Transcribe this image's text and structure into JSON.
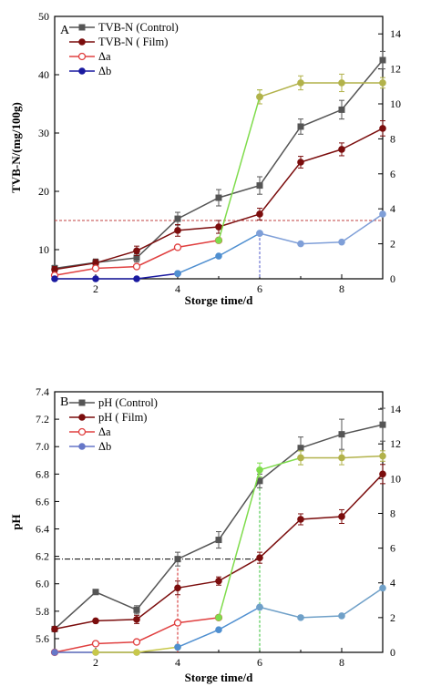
{
  "chart_data": [
    {
      "panel": "A",
      "type": "line",
      "xlabel": "Storge time/d",
      "ylabel": "TVB-N/(mg/100g)",
      "xlim": [
        1,
        9
      ],
      "ylim": [
        5,
        50
      ],
      "y2lim": [
        0,
        15
      ],
      "xticks": [
        2,
        4,
        6,
        8
      ],
      "yticks": [
        10,
        20,
        30,
        40,
        50
      ],
      "y2ticks": [
        0,
        2,
        4,
        6,
        8,
        10,
        12,
        14
      ],
      "series": [
        {
          "name": "TVB-N (Control)",
          "axis": "left",
          "color": "#555555",
          "marker": "square",
          "x": [
            1,
            2,
            3,
            4,
            5,
            6,
            7,
            8,
            9
          ],
          "y": [
            6.8,
            7.8,
            8.6,
            15.3,
            18.9,
            21.0,
            31.1,
            34.0,
            42.5
          ],
          "err": [
            0.5,
            0.6,
            0.7,
            1.1,
            1.4,
            1.5,
            1.3,
            1.6,
            1.5
          ]
        },
        {
          "name": "TVB-N ( Film)",
          "axis": "left",
          "color": "#7b0d0d",
          "marker": "circle",
          "x": [
            1,
            2,
            3,
            4,
            5,
            6,
            7,
            8,
            9
          ],
          "y": [
            6.6,
            7.7,
            9.8,
            13.3,
            13.9,
            16.1,
            25.0,
            27.2,
            30.8
          ],
          "err": [
            0.5,
            0.6,
            0.8,
            1.0,
            1.1,
            1.0,
            1.0,
            1.1,
            1.3
          ]
        },
        {
          "name": "Δa",
          "axis": "right",
          "color": "#e04040",
          "marker": "open-circle",
          "x": [
            1,
            2,
            3,
            4,
            5
          ],
          "y": [
            0.2,
            0.6,
            0.7,
            1.8,
            2.2
          ],
          "err": [
            0,
            0,
            0,
            0,
            0
          ]
        },
        {
          "name": "Δb",
          "axis": "right",
          "color": "#1a1aa0",
          "marker": "circle",
          "x": [
            1,
            2,
            3,
            4
          ],
          "y": [
            0.0,
            0.0,
            0.0,
            0.3
          ],
          "err": [
            0,
            0,
            0,
            0
          ]
        },
        {
          "axis": "right",
          "color": "#7fdc4c",
          "marker": "circle",
          "x": [
            5,
            6
          ],
          "y": [
            2.2,
            10.4
          ],
          "err": [
            0,
            0.4
          ]
        },
        {
          "axis": "right",
          "color": "#b2b24a",
          "marker": "circle",
          "x": [
            6,
            7,
            8,
            9
          ],
          "y": [
            10.4,
            11.2,
            11.2,
            11.2
          ],
          "err": [
            0.4,
            0.4,
            0.5,
            0.3
          ]
        },
        {
          "axis": "right",
          "color": "#4f8fd0",
          "marker": "circle",
          "x": [
            4,
            5,
            6
          ],
          "y": [
            0.3,
            1.3,
            2.6
          ],
          "err": [
            0,
            0,
            0
          ]
        },
        {
          "axis": "right",
          "color": "#7f9fd8",
          "marker": "circle",
          "x": [
            6,
            7,
            8,
            9
          ],
          "y": [
            2.6,
            2.0,
            2.1,
            3.7
          ],
          "err": [
            0,
            0,
            0,
            0
          ]
        }
      ],
      "guides": {
        "hline_left": 15,
        "vlines": [
          6
        ]
      },
      "legend_position": "top-left",
      "colors": {
        "guide": "#c04040"
      }
    },
    {
      "panel": "B",
      "type": "line",
      "xlabel": "Storge time/d",
      "ylabel": "pH",
      "xlim": [
        1,
        9
      ],
      "ylim": [
        5.5,
        7.4
      ],
      "y2lim": [
        0,
        15
      ],
      "xticks": [
        2,
        4,
        6,
        8
      ],
      "yticks": [
        5.6,
        5.8,
        6.0,
        6.2,
        6.4,
        6.6,
        6.8,
        7.0,
        7.2,
        7.4
      ],
      "y2ticks": [
        0,
        2,
        4,
        6,
        8,
        10,
        12,
        14
      ],
      "series": [
        {
          "name": "pH (Control)",
          "axis": "left",
          "color": "#555555",
          "marker": "square",
          "x": [
            1,
            2,
            3,
            4,
            5,
            6,
            7,
            8,
            9
          ],
          "y": [
            5.67,
            5.94,
            5.81,
            6.18,
            6.32,
            6.75,
            6.99,
            7.09,
            7.16
          ],
          "err": [
            0.01,
            0.01,
            0.03,
            0.05,
            0.06,
            0.05,
            0.08,
            0.11,
            0.12
          ]
        },
        {
          "name": "pH ( Film)",
          "axis": "left",
          "color": "#7b0d0d",
          "marker": "circle",
          "x": [
            1,
            2,
            3,
            4,
            5,
            6,
            7,
            8,
            9
          ],
          "y": [
            5.67,
            5.73,
            5.74,
            5.97,
            6.02,
            6.19,
            6.47,
            6.49,
            6.8
          ],
          "err": [
            0.01,
            0.01,
            0.03,
            0.05,
            0.03,
            0.04,
            0.04,
            0.05,
            0.07
          ]
        },
        {
          "name": "Δa",
          "axis": "right",
          "color": "#e04040",
          "marker": "open-circle",
          "x": [
            1,
            2,
            3,
            4,
            5
          ],
          "y": [
            0.0,
            0.5,
            0.6,
            1.7,
            2.0
          ],
          "err": [
            0,
            0,
            0,
            0,
            0
          ]
        },
        {
          "name": "Δb",
          "axis": "right",
          "color": "#6677c8",
          "marker": "circle",
          "x": [
            1,
            2,
            3
          ],
          "y": [
            0.0,
            0.0,
            0.0
          ],
          "err": [
            0,
            0,
            0
          ]
        },
        {
          "axis": "right",
          "color": "#c8c84a",
          "marker": "circle",
          "x": [
            2,
            3,
            4
          ],
          "y": [
            0.0,
            0.0,
            0.3
          ],
          "err": [
            0,
            0,
            0
          ]
        },
        {
          "axis": "right",
          "color": "#4f8fd0",
          "marker": "circle",
          "x": [
            4,
            5,
            6
          ],
          "y": [
            0.3,
            1.3,
            2.6
          ],
          "err": [
            0,
            0,
            0
          ]
        },
        {
          "axis": "right",
          "color": "#6fa0c8",
          "marker": "circle",
          "x": [
            6,
            7,
            8,
            9
          ],
          "y": [
            2.6,
            2.0,
            2.1,
            3.7
          ],
          "err": [
            0,
            0,
            0,
            0
          ]
        },
        {
          "axis": "right",
          "color": "#7fdc4c",
          "marker": "circle",
          "x": [
            5,
            6,
            7
          ],
          "y": [
            2.0,
            10.5,
            11.2
          ],
          "err": [
            0,
            0.4,
            0.4
          ]
        },
        {
          "axis": "right",
          "color": "#b2b24a",
          "marker": "circle",
          "x": [
            7,
            8,
            9
          ],
          "y": [
            11.2,
            11.2,
            11.3
          ],
          "err": [
            0.4,
            0.4,
            0.3
          ]
        }
      ],
      "guides": {
        "hline_left": 6.18,
        "vlines": [
          4,
          6
        ]
      },
      "legend_position": "top-left",
      "colors": {
        "guide": "#000000"
      }
    }
  ]
}
